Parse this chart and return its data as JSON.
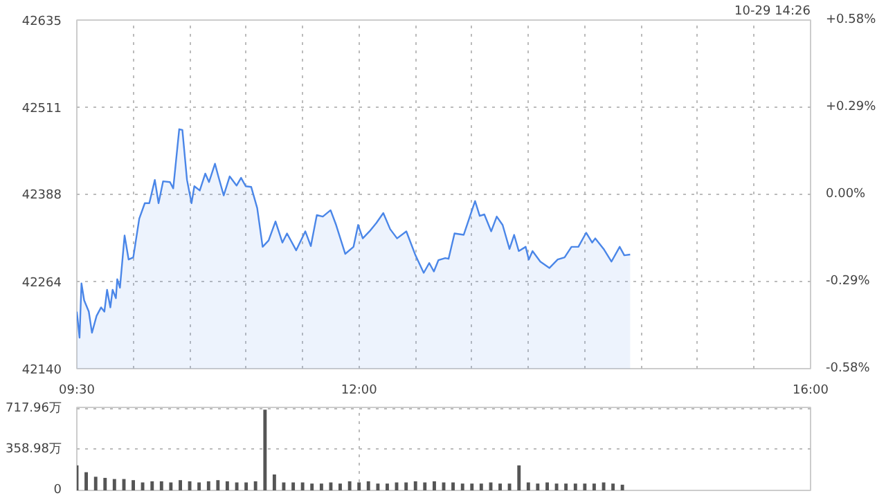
{
  "chart_data": [
    {
      "type": "area",
      "annotations": [
        "10-29 14:26"
      ],
      "grid": true,
      "line_style": "solid",
      "x": [
        9.5,
        9.524,
        9.541,
        9.565,
        9.606,
        9.634,
        9.675,
        9.715,
        9.744,
        9.768,
        9.797,
        9.817,
        9.846,
        9.858,
        9.882,
        9.923,
        9.959,
        10.0,
        10.053,
        10.102,
        10.142,
        10.191,
        10.224,
        10.264,
        10.325,
        10.354,
        10.407,
        10.435,
        10.476,
        10.516,
        10.541,
        10.589,
        10.638,
        10.671,
        10.724,
        10.752,
        10.801,
        10.854,
        10.915,
        10.955,
        10.996,
        11.045,
        11.098,
        11.146,
        11.199,
        11.26,
        11.321,
        11.362,
        11.443,
        11.524,
        11.573,
        11.626,
        11.679,
        11.748,
        11.797,
        11.878,
        11.951,
        11.992,
        12.033,
        12.093,
        12.154,
        12.215,
        12.276,
        12.337,
        12.419,
        12.5,
        12.573,
        12.622,
        12.663,
        12.703,
        12.764,
        12.793,
        12.846,
        12.927,
        13.028,
        13.069,
        13.11,
        13.171,
        13.22,
        13.272,
        13.333,
        13.374,
        13.415,
        13.476,
        13.504,
        13.537,
        13.606,
        13.687,
        13.76,
        13.821,
        13.882,
        13.943,
        14.012,
        14.065,
        14.093,
        14.167,
        14.236,
        14.309,
        14.35,
        14.402
      ],
      "series": [
        {
          "color": "#4a86e8",
          "values": [
            42221,
            42184,
            42261,
            42237,
            42221,
            42191,
            42215,
            42227,
            42221,
            42252,
            42227,
            42252,
            42240,
            42267,
            42255,
            42329,
            42295,
            42298,
            42353,
            42375,
            42375,
            42408,
            42375,
            42406,
            42405,
            42396,
            42480,
            42479,
            42408,
            42375,
            42399,
            42393,
            42417,
            42405,
            42431,
            42414,
            42386,
            42413,
            42400,
            42411,
            42399,
            42398,
            42368,
            42313,
            42322,
            42349,
            42319,
            42332,
            42308,
            42335,
            42314,
            42358,
            42356,
            42365,
            42344,
            42303,
            42313,
            42344,
            42325,
            42335,
            42347,
            42361,
            42338,
            42325,
            42335,
            42301,
            42276,
            42290,
            42278,
            42294,
            42297,
            42296,
            42332,
            42330,
            42378,
            42357,
            42359,
            42335,
            42356,
            42344,
            42310,
            42330,
            42307,
            42313,
            42295,
            42307,
            42292,
            42283,
            42295,
            42298,
            42313,
            42313,
            42333,
            42319,
            42325,
            42310,
            42292,
            42313,
            42301,
            42302
          ]
        }
      ],
      "xlim": [
        9.5,
        16
      ],
      "xticks": [
        {
          "value": 9.5,
          "label": "09:30"
        },
        {
          "value": 10,
          "label": null
        },
        {
          "value": 10.5,
          "label": null
        },
        {
          "value": 11,
          "label": null
        },
        {
          "value": 11.5,
          "label": null
        },
        {
          "value": 12,
          "label": "12:00"
        },
        {
          "value": 12.5,
          "label": null
        },
        {
          "value": 13,
          "label": null
        },
        {
          "value": 13.5,
          "label": null
        },
        {
          "value": 14,
          "label": null
        },
        {
          "value": 14.5,
          "label": null
        },
        {
          "value": 15,
          "label": null
        },
        {
          "value": 15.5,
          "label": null
        },
        {
          "value": 16,
          "label": "16:00"
        }
      ],
      "ylim": [
        42140,
        42635
      ],
      "yticks": [
        42140,
        42264,
        42388,
        42511,
        42635
      ],
      "y2lim": [
        -0.58,
        0.58
      ],
      "y2ticks": [
        {
          "value": -0.58,
          "label": "-0.58%"
        },
        {
          "value": -0.29,
          "label": "-0.29%"
        },
        {
          "value": 0,
          "label": "0.00%"
        },
        {
          "value": 0.29,
          "label": "+0.29%"
        },
        {
          "value": 0.58,
          "label": "+0.58%"
        }
      ]
    },
    {
      "type": "bar",
      "tick_labels": "y",
      "grid": true,
      "x": [
        9.5,
        9.583,
        9.667,
        9.75,
        9.833,
        9.917,
        10,
        10.083,
        10.167,
        10.25,
        10.333,
        10.417,
        10.5,
        10.583,
        10.667,
        10.75,
        10.833,
        10.917,
        11,
        11.083,
        11.167,
        11.25,
        11.333,
        11.417,
        11.5,
        11.583,
        11.667,
        11.75,
        11.833,
        11.917,
        12,
        12.083,
        12.167,
        12.25,
        12.333,
        12.417,
        12.5,
        12.583,
        12.667,
        12.75,
        12.833,
        12.917,
        13,
        13.083,
        13.167,
        13.25,
        13.333,
        13.417,
        13.5,
        13.583,
        13.667,
        13.75,
        13.833,
        13.917,
        14,
        14.083,
        14.167,
        14.25,
        14.333
      ],
      "series": [
        {
          "color": "#555555",
          "values": [
            220,
            160,
            120,
            110,
            100,
            100,
            90,
            70,
            80,
            80,
            70,
            90,
            80,
            70,
            80,
            90,
            80,
            70,
            70,
            80,
            710,
            140,
            70,
            70,
            70,
            60,
            60,
            70,
            60,
            80,
            70,
            80,
            60,
            60,
            70,
            70,
            80,
            70,
            80,
            70,
            70,
            60,
            60,
            60,
            70,
            60,
            60,
            220,
            70,
            60,
            70,
            60,
            60,
            60,
            60,
            60,
            70,
            60,
            50
          ]
        }
      ],
      "xlim": [
        9.5,
        16
      ],
      "xticks": [
        {
          "value": 9.5,
          "label": null
        },
        {
          "value": 12,
          "label": null
        },
        {
          "value": 16,
          "label": null
        }
      ],
      "ylim": [
        0,
        730
      ],
      "yticks": [
        0,
        {
          "value": 358.98,
          "label": "358.98万"
        },
        {
          "value": 717.96,
          "label": "717.96万"
        }
      ]
    }
  ]
}
